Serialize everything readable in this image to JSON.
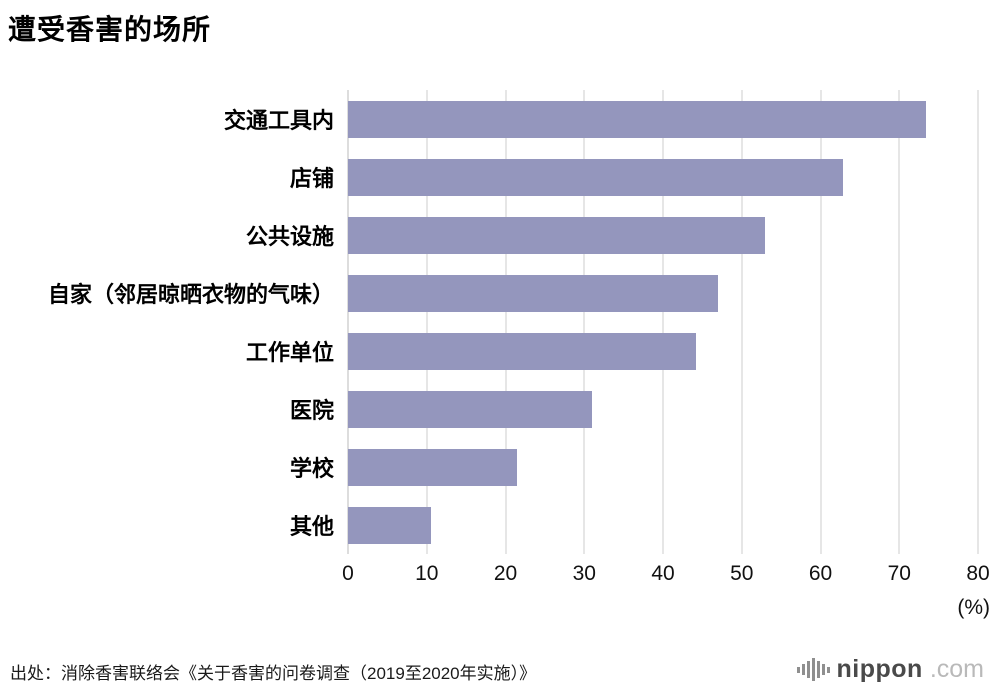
{
  "title": "遭受香害的场所",
  "chart_data": {
    "type": "bar",
    "orientation": "horizontal",
    "title": "遭受香害的场所",
    "categories": [
      "交通工具内",
      "店铺",
      "公共设施",
      "自家（邻居晾晒衣物的气味）",
      "工作单位",
      "医院",
      "学校",
      "其他"
    ],
    "values": [
      73.4,
      62.8,
      53.0,
      47.0,
      44.2,
      31.0,
      21.4,
      10.5
    ],
    "xlim": [
      0,
      80
    ],
    "xticks": [
      0,
      10,
      20,
      30,
      40,
      50,
      60,
      70,
      80
    ],
    "unit_label": "(%)",
    "bar_color": "#9496bd",
    "grid": true,
    "legend": "none"
  },
  "footer": {
    "source": "出处：消除香害联络会《关于香害的问卷调查（2019至2020年实施）》",
    "logo": {
      "brand": "nippon",
      "tld": ".com",
      "icon": "soundwave-bars-icon"
    }
  }
}
